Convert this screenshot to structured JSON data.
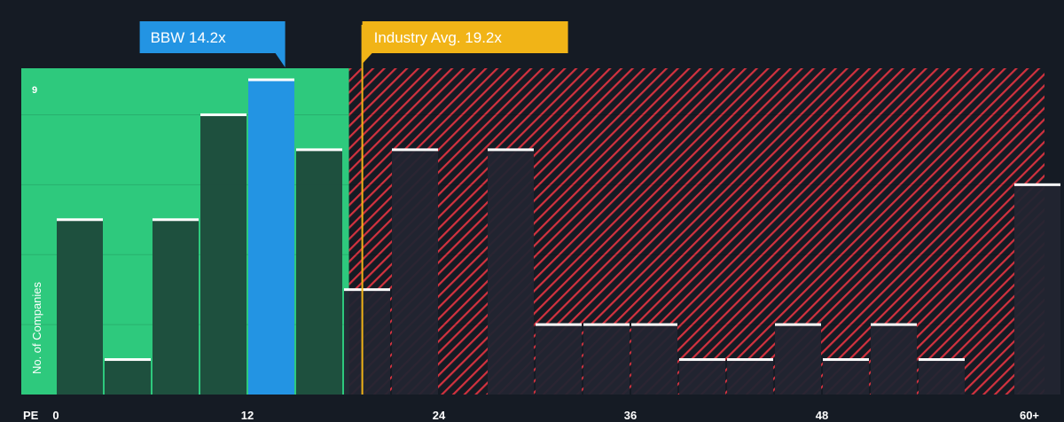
{
  "chart_data": {
    "type": "bar",
    "xlabel": "PE",
    "ylabel": "No. of Companies",
    "xlim": [
      -3,
      62
    ],
    "ylim": [
      0,
      9
    ],
    "x_tick_labels": [
      {
        "value": 0,
        "label": "0"
      },
      {
        "value": 12,
        "label": "12"
      },
      {
        "value": 24,
        "label": "24"
      },
      {
        "value": 36,
        "label": "36"
      },
      {
        "value": 48,
        "label": "48"
      },
      {
        "value": 61,
        "label": "60+"
      }
    ],
    "y_max_label": "9",
    "bin_width": 3,
    "bins": [
      {
        "start": 0,
        "count": 5
      },
      {
        "start": 3,
        "count": 1
      },
      {
        "start": 6,
        "count": 5
      },
      {
        "start": 9,
        "count": 8
      },
      {
        "start": 12,
        "count": 9,
        "highlight": true
      },
      {
        "start": 15,
        "count": 7
      },
      {
        "start": 18,
        "count": 3
      },
      {
        "start": 21,
        "count": 7
      },
      {
        "start": 24,
        "count": 0
      },
      {
        "start": 27,
        "count": 7
      },
      {
        "start": 30,
        "count": 2
      },
      {
        "start": 33,
        "count": 2
      },
      {
        "start": 36,
        "count": 2
      },
      {
        "start": 39,
        "count": 1
      },
      {
        "start": 42,
        "count": 1
      },
      {
        "start": 45,
        "count": 2
      },
      {
        "start": 48,
        "count": 1
      },
      {
        "start": 51,
        "count": 2
      },
      {
        "start": 54,
        "count": 1
      },
      {
        "start": 57,
        "count": 0
      },
      {
        "start": 60,
        "count": 6
      }
    ],
    "company": {
      "label": "BBW 14.2x",
      "value": 14.2,
      "color": "#2394e3"
    },
    "industry_avg": {
      "label": "Industry Avg. 19.2x",
      "value": 19.2,
      "color": "#f1b417"
    },
    "colors": {
      "background": "#151b24",
      "fair_zone": "#2ec97d",
      "fair_bar": "#1e4a3b",
      "overvalued_hatch": "#d2323f",
      "overvalued_bar": "#222532",
      "bar_top": "#ffffff"
    }
  }
}
